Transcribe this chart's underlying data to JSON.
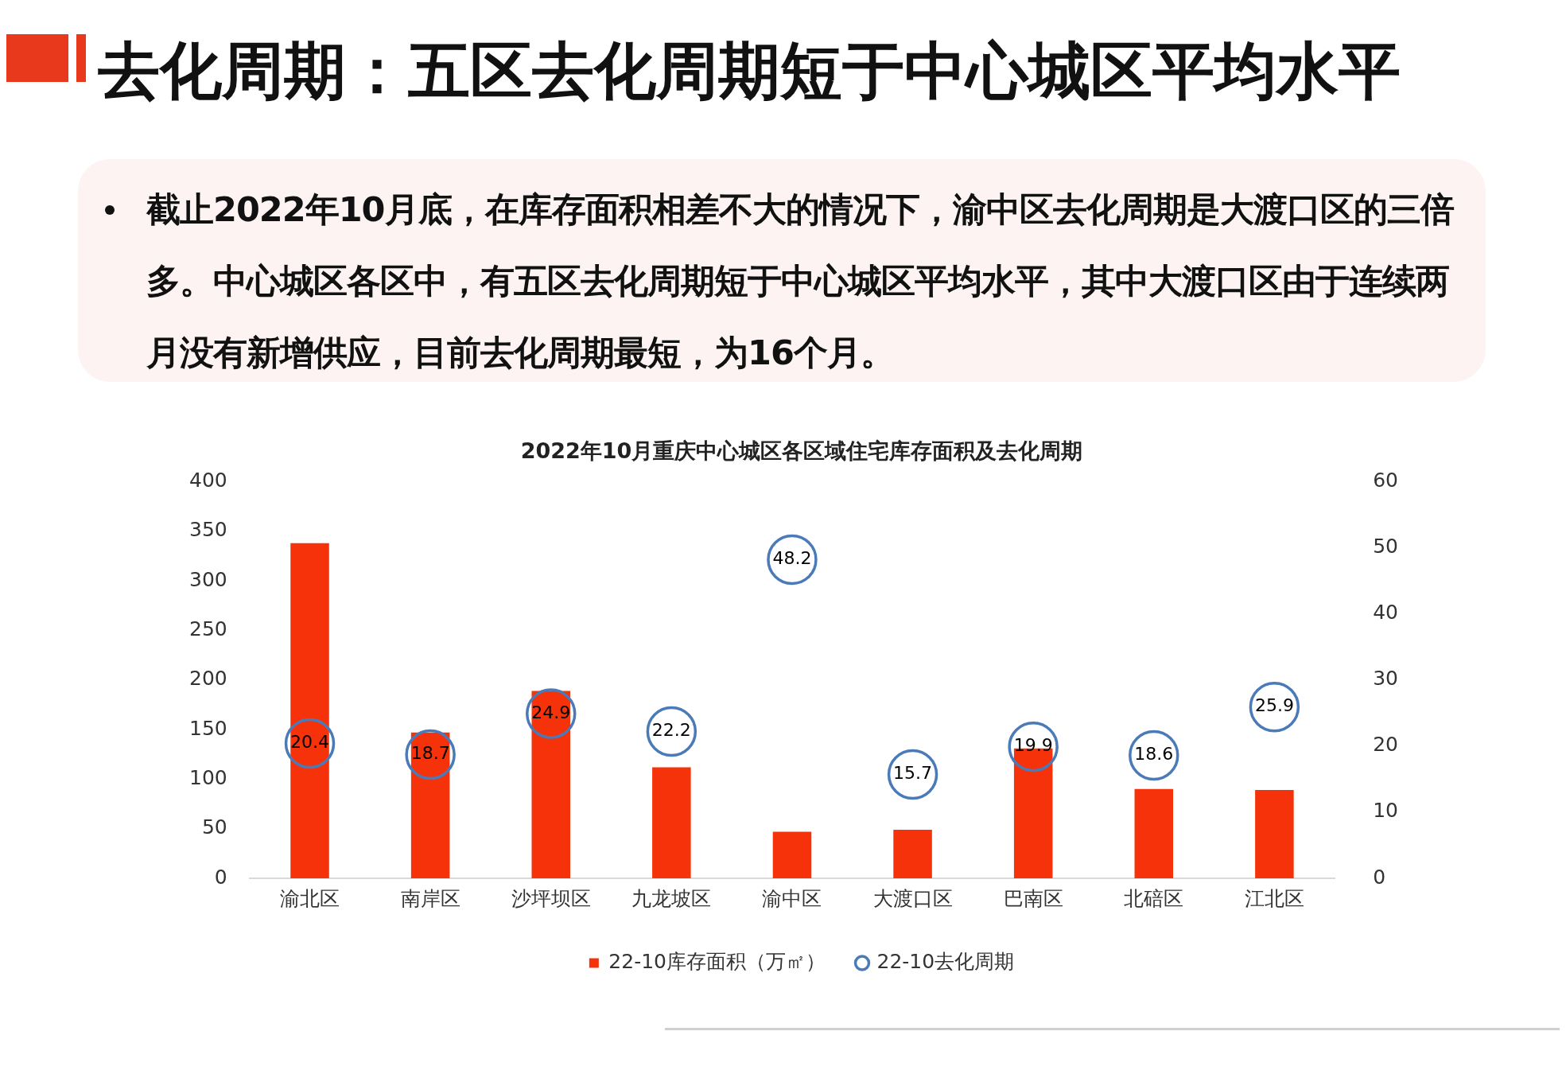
{
  "chart_data": {
    "type": "bar",
    "title": "去化周期：五区去化周期短于中心城区平均水平",
    "subtitle": "2022年10月重庆中心城区各区域住宅库存面积及去化周期",
    "annotations": [
      "截止2022年10月底，在库存面积相差不大的情况下，渝中区去化周期是大渡口区的三倍多。中心城区各区中，有五区去化周期短于中心城区平均水平，其中大渡口区由于连续两月没有新增供应，目前去化周期最短，为16个月。"
    ],
    "categories": [
      "渝北区",
      "南岸区",
      "沙坪坝区",
      "九龙坡区",
      "渝中区",
      "大渡口区",
      "巴南区",
      "北碚区",
      "江北区"
    ],
    "series": [
      {
        "name": "22-10库存面积（万㎡）",
        "color": "#f5320a",
        "values": [
          338,
          147,
          189,
          112,
          47,
          49,
          131,
          90,
          89
        ]
      },
      {
        "name": "22-10去化周期",
        "type": "scatter",
        "axis": "y2",
        "marker": "circle",
        "color": "#4a7ab8",
        "values": [
          20.4,
          18.7,
          24.9,
          22.2,
          48.2,
          15.7,
          19.9,
          18.6,
          25.9
        ],
        "value_labels": [
          "20.4",
          "18.7",
          "24.9",
          "22.2",
          "48.2",
          "15.7",
          "19.9",
          "18.6",
          "25.9"
        ]
      }
    ],
    "ylim": [
      0,
      400
    ],
    "yticks": [
      0,
      50,
      100,
      150,
      200,
      250,
      300,
      350,
      400
    ],
    "y2lim": [
      0,
      60
    ],
    "y2ticks": [
      0,
      10,
      20,
      30,
      40,
      50,
      60
    ],
    "grid": false,
    "legend": "bottom"
  }
}
